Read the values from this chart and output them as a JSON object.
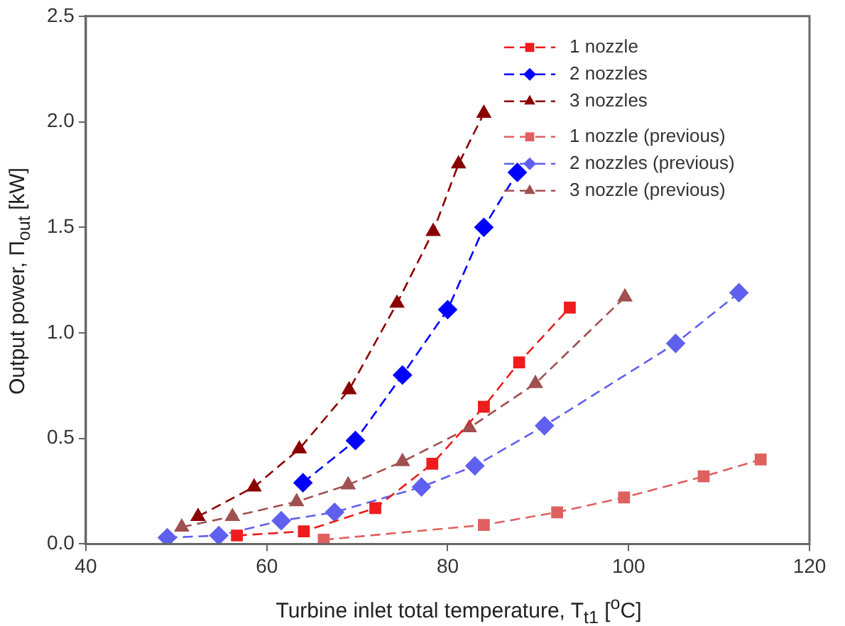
{
  "chart_data": {
    "type": "line",
    "xlabel": "Turbine inlet total temperature, T$_{t1}$ [$^{o}$C]",
    "ylabel": "Output power, Π$_{out}$ [kW]",
    "xlim": [
      40,
      120
    ],
    "xticks": [
      40,
      60,
      80,
      100,
      120
    ],
    "ylim": [
      0,
      2.5
    ],
    "yticks": [
      {
        "value": 0,
        "label": "0.0"
      },
      0.5,
      {
        "value": 1,
        "label": "1.0"
      },
      1.5,
      {
        "value": 2,
        "label": "2.0"
      },
      2.5
    ],
    "grid": false,
    "legend": "top right",
    "line_style": "dashed",
    "series": [
      {
        "name": "1 nozzle",
        "color": "#ee1c1c",
        "marker": "square",
        "x": [
          56.7,
          64.1,
          72,
          78.3,
          84,
          87.9,
          93.5
        ],
        "values": [
          0.04,
          0.06,
          0.17,
          0.38,
          0.65,
          0.86,
          1.12
        ]
      },
      {
        "name": "2 nozzles",
        "color": "#0000ff",
        "marker": "diamond",
        "x": [
          64,
          69.8,
          75,
          80,
          84,
          87.7
        ],
        "values": [
          0.29,
          0.49,
          0.8,
          1.11,
          1.5,
          1.76
        ]
      },
      {
        "name": "3 nozzles",
        "color": "#8b0000",
        "marker": "triangle",
        "x": [
          52.4,
          58.6,
          63.6,
          69.1,
          74.4,
          78.4,
          81.2,
          84
        ],
        "values": [
          0.13,
          0.27,
          0.45,
          0.73,
          1.14,
          1.48,
          1.8,
          2.04
        ]
      },
      {
        "name": "1 nozzle (previous)",
        "color": "#e06060",
        "marker": "square",
        "x": [
          66.3,
          84,
          92.1,
          99.5,
          108.3,
          114.6
        ],
        "values": [
          0.02,
          0.09,
          0.15,
          0.22,
          0.32,
          0.4
        ]
      },
      {
        "name": "2 nozzles (previous)",
        "color": "#6060ee",
        "marker": "diamond",
        "x": [
          49,
          54.7,
          61.6,
          67.5,
          77.1,
          83,
          90.7,
          105.2,
          112.2
        ],
        "values": [
          0.03,
          0.04,
          0.11,
          0.15,
          0.27,
          0.37,
          0.56,
          0.95,
          1.19
        ]
      },
      {
        "name": "3 nozzle (previous)",
        "color": "#a05050",
        "marker": "triangle",
        "x": [
          50.6,
          56.2,
          63.3,
          69,
          75,
          82.4,
          89.7,
          99.6
        ],
        "values": [
          0.08,
          0.13,
          0.2,
          0.28,
          0.39,
          0.55,
          0.76,
          1.17
        ]
      }
    ]
  }
}
